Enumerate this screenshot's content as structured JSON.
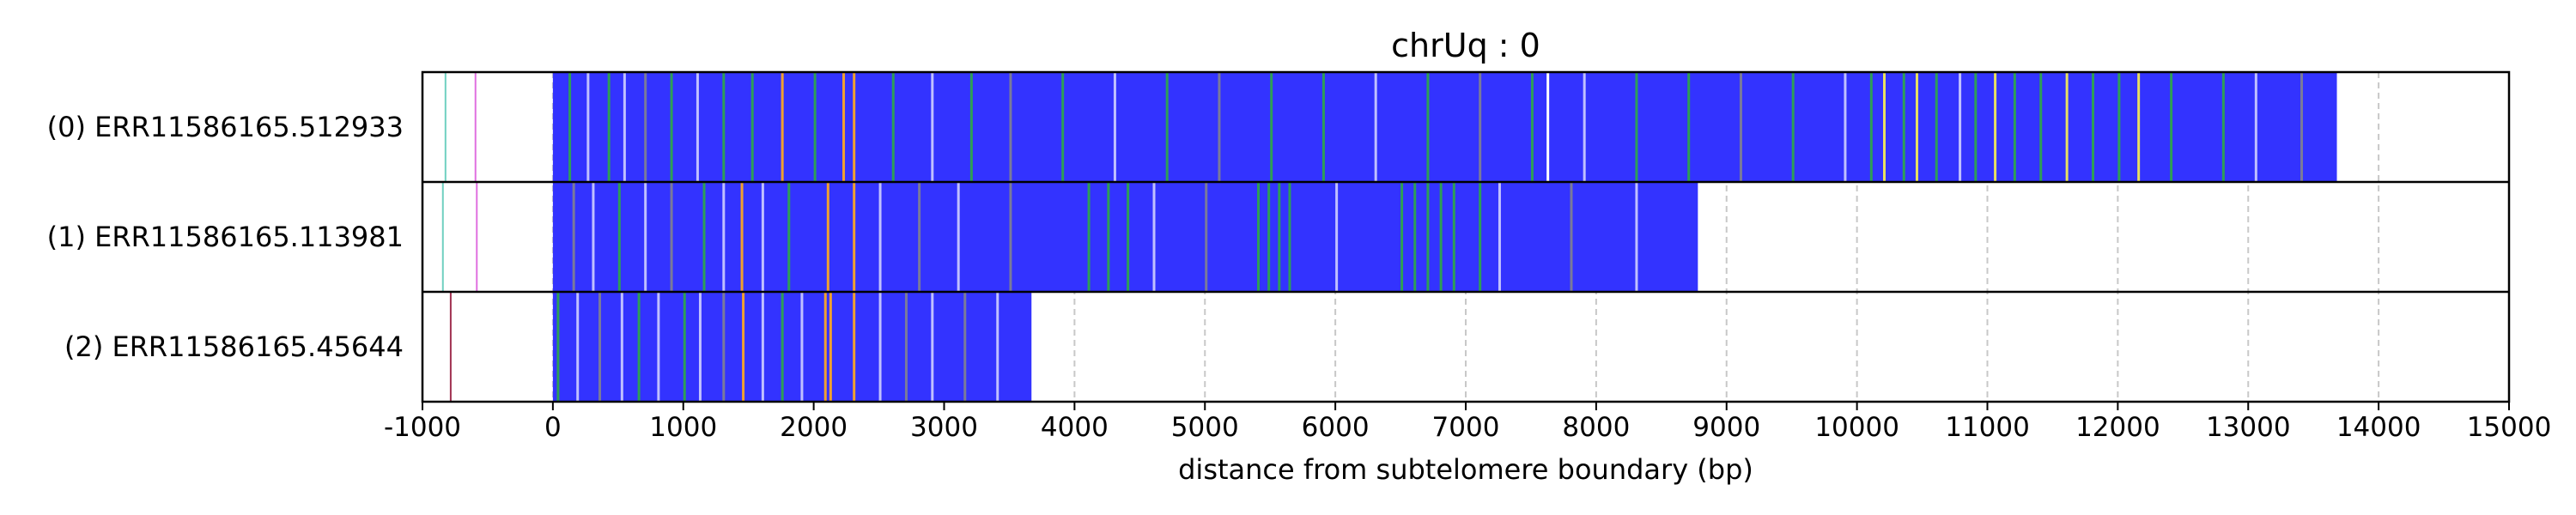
{
  "chart_data": {
    "type": "read-track",
    "title": "chrUq : 0",
    "xlabel": "distance from subtelomere boundary (bp)",
    "xlim": [
      -1000,
      15000
    ],
    "xticks": [
      -1000,
      0,
      1000,
      2000,
      3000,
      4000,
      5000,
      6000,
      7000,
      8000,
      9000,
      10000,
      11000,
      12000,
      13000,
      14000,
      15000
    ],
    "grid": "vertical-dashed",
    "colors": {
      "main": "#3333ff",
      "green": "#2e9e57",
      "orange": "#f0a030",
      "lavender": "#c0c0ff",
      "white": "#ffffff",
      "pink": "#e070e0",
      "teal": "#70d0c0",
      "maroon": "#a03050",
      "gray": "#7a7a9a",
      "yellow": "#e8e060"
    },
    "reads": [
      {
        "label": "(0) ERR11586165.512933",
        "start": 0,
        "end": 13680,
        "outliers": [
          {
            "pos": -830,
            "color": "teal"
          },
          {
            "pos": -600,
            "color": "pink"
          }
        ],
        "stripes": [
          {
            "pos": 120,
            "color": "green"
          },
          {
            "pos": 260,
            "color": "lavender"
          },
          {
            "pos": 420,
            "color": "green"
          },
          {
            "pos": 540,
            "color": "lavender"
          },
          {
            "pos": 700,
            "color": "gray"
          },
          {
            "pos": 900,
            "color": "green"
          },
          {
            "pos": 1100,
            "color": "lavender"
          },
          {
            "pos": 1300,
            "color": "green"
          },
          {
            "pos": 1520,
            "color": "green"
          },
          {
            "pos": 1750,
            "color": "orange"
          },
          {
            "pos": 2000,
            "color": "green"
          },
          {
            "pos": 2220,
            "color": "orange"
          },
          {
            "pos": 2300,
            "color": "orange"
          },
          {
            "pos": 2600,
            "color": "green"
          },
          {
            "pos": 2900,
            "color": "lavender"
          },
          {
            "pos": 3200,
            "color": "green"
          },
          {
            "pos": 3500,
            "color": "gray"
          },
          {
            "pos": 3900,
            "color": "green"
          },
          {
            "pos": 4300,
            "color": "lavender"
          },
          {
            "pos": 4700,
            "color": "green"
          },
          {
            "pos": 5100,
            "color": "gray"
          },
          {
            "pos": 5500,
            "color": "green"
          },
          {
            "pos": 5900,
            "color": "green"
          },
          {
            "pos": 6300,
            "color": "lavender"
          },
          {
            "pos": 6700,
            "color": "green"
          },
          {
            "pos": 7100,
            "color": "gray"
          },
          {
            "pos": 7500,
            "color": "green"
          },
          {
            "pos": 7620,
            "color": "white"
          },
          {
            "pos": 7900,
            "color": "lavender"
          },
          {
            "pos": 8300,
            "color": "green"
          },
          {
            "pos": 8700,
            "color": "green"
          },
          {
            "pos": 9100,
            "color": "gray"
          },
          {
            "pos": 9500,
            "color": "green"
          },
          {
            "pos": 9900,
            "color": "lavender"
          },
          {
            "pos": 10100,
            "color": "green"
          },
          {
            "pos": 10200,
            "color": "yellow"
          },
          {
            "pos": 10350,
            "color": "green"
          },
          {
            "pos": 10450,
            "color": "yellow"
          },
          {
            "pos": 10600,
            "color": "green"
          },
          {
            "pos": 10780,
            "color": "lavender"
          },
          {
            "pos": 10900,
            "color": "green"
          },
          {
            "pos": 11050,
            "color": "yellow"
          },
          {
            "pos": 11200,
            "color": "green"
          },
          {
            "pos": 11400,
            "color": "green"
          },
          {
            "pos": 11600,
            "color": "yellow"
          },
          {
            "pos": 11800,
            "color": "green"
          },
          {
            "pos": 12000,
            "color": "green"
          },
          {
            "pos": 12150,
            "color": "yellow"
          },
          {
            "pos": 12400,
            "color": "green"
          },
          {
            "pos": 12800,
            "color": "green"
          },
          {
            "pos": 13050,
            "color": "lavender"
          },
          {
            "pos": 13400,
            "color": "gray"
          }
        ]
      },
      {
        "label": "(1) ERR11586165.113981",
        "start": 0,
        "end": 8780,
        "outliers": [
          {
            "pos": -850,
            "color": "teal"
          },
          {
            "pos": -590,
            "color": "pink"
          }
        ],
        "stripes": [
          {
            "pos": 150,
            "color": "gray"
          },
          {
            "pos": 300,
            "color": "lavender"
          },
          {
            "pos": 500,
            "color": "green"
          },
          {
            "pos": 700,
            "color": "lavender"
          },
          {
            "pos": 900,
            "color": "gray"
          },
          {
            "pos": 1150,
            "color": "green"
          },
          {
            "pos": 1300,
            "color": "lavender"
          },
          {
            "pos": 1440,
            "color": "orange"
          },
          {
            "pos": 1600,
            "color": "lavender"
          },
          {
            "pos": 1800,
            "color": "green"
          },
          {
            "pos": 2100,
            "color": "orange"
          },
          {
            "pos": 2300,
            "color": "orange"
          },
          {
            "pos": 2500,
            "color": "lavender"
          },
          {
            "pos": 2800,
            "color": "gray"
          },
          {
            "pos": 3100,
            "color": "lavender"
          },
          {
            "pos": 3500,
            "color": "gray"
          },
          {
            "pos": 4100,
            "color": "green"
          },
          {
            "pos": 4250,
            "color": "green"
          },
          {
            "pos": 4400,
            "color": "green"
          },
          {
            "pos": 4600,
            "color": "lavender"
          },
          {
            "pos": 5000,
            "color": "gray"
          },
          {
            "pos": 5400,
            "color": "green"
          },
          {
            "pos": 5480,
            "color": "green"
          },
          {
            "pos": 5560,
            "color": "green"
          },
          {
            "pos": 5640,
            "color": "green"
          },
          {
            "pos": 6000,
            "color": "lavender"
          },
          {
            "pos": 6500,
            "color": "green"
          },
          {
            "pos": 6600,
            "color": "green"
          },
          {
            "pos": 6700,
            "color": "green"
          },
          {
            "pos": 6800,
            "color": "green"
          },
          {
            "pos": 6900,
            "color": "green"
          },
          {
            "pos": 7100,
            "color": "green"
          },
          {
            "pos": 7250,
            "color": "lavender"
          },
          {
            "pos": 7800,
            "color": "gray"
          },
          {
            "pos": 8300,
            "color": "lavender"
          }
        ]
      },
      {
        "label": "(2) ERR11586165.45644",
        "start": 0,
        "end": 3670,
        "outliers": [
          {
            "pos": -790,
            "color": "maroon"
          }
        ],
        "stripes": [
          {
            "pos": 30,
            "color": "green"
          },
          {
            "pos": 180,
            "color": "lavender"
          },
          {
            "pos": 350,
            "color": "gray"
          },
          {
            "pos": 520,
            "color": "lavender"
          },
          {
            "pos": 650,
            "color": "green"
          },
          {
            "pos": 800,
            "color": "lavender"
          },
          {
            "pos": 1000,
            "color": "green"
          },
          {
            "pos": 1120,
            "color": "lavender"
          },
          {
            "pos": 1300,
            "color": "gray"
          },
          {
            "pos": 1450,
            "color": "orange"
          },
          {
            "pos": 1600,
            "color": "lavender"
          },
          {
            "pos": 1750,
            "color": "green"
          },
          {
            "pos": 1900,
            "color": "lavender"
          },
          {
            "pos": 2080,
            "color": "orange"
          },
          {
            "pos": 2120,
            "color": "orange"
          },
          {
            "pos": 2300,
            "color": "orange"
          },
          {
            "pos": 2500,
            "color": "lavender"
          },
          {
            "pos": 2700,
            "color": "gray"
          },
          {
            "pos": 2900,
            "color": "lavender"
          },
          {
            "pos": 3150,
            "color": "gray"
          },
          {
            "pos": 3400,
            "color": "lavender"
          }
        ]
      }
    ]
  }
}
